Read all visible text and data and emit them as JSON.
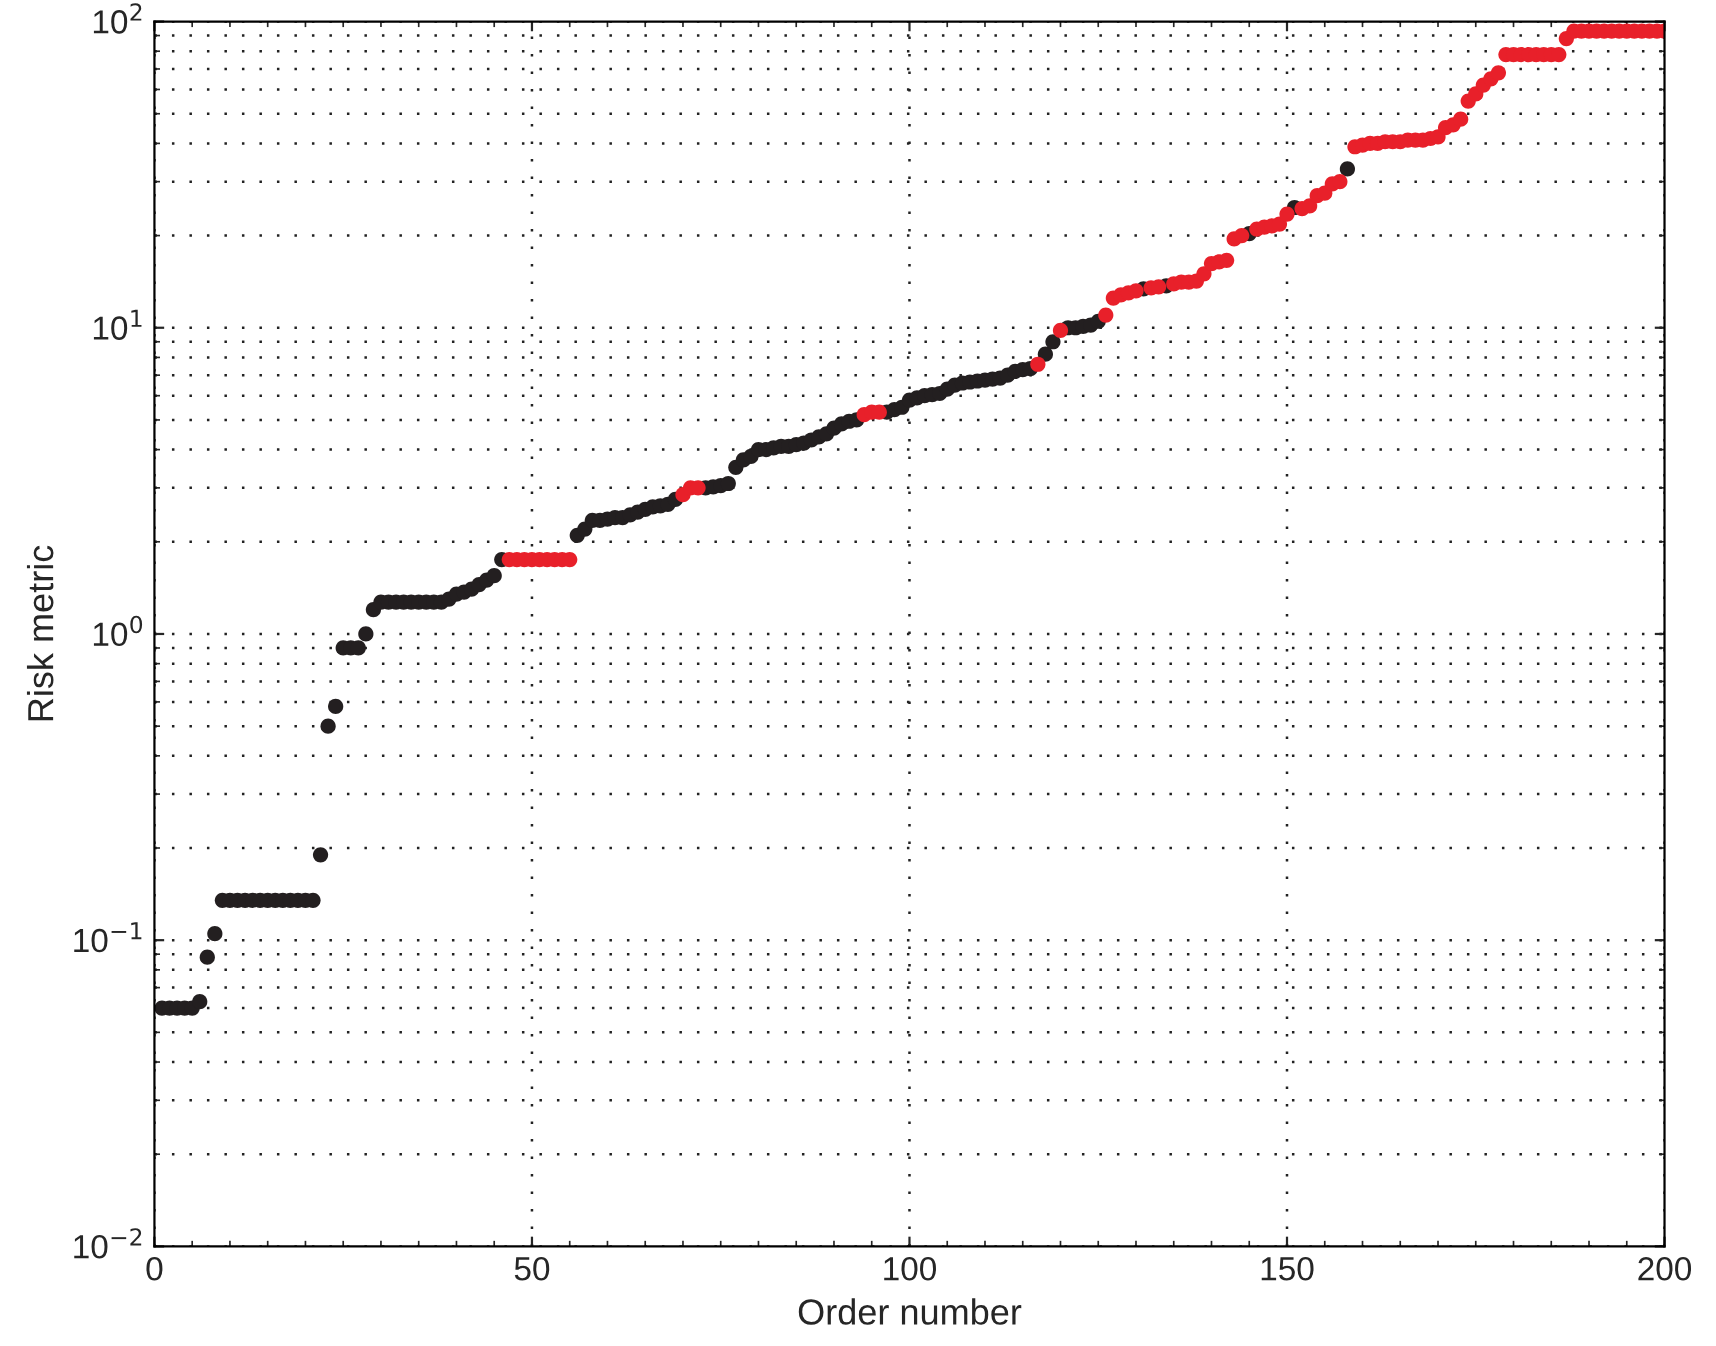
{
  "chart_data": {
    "type": "scatter",
    "xlabel": "Order number",
    "ylabel": "Risk metric",
    "log": "y",
    "grid": true,
    "marker": "circle",
    "legend": false,
    "xlim": [
      0,
      200
    ],
    "xticks": [
      0,
      50,
      100,
      150,
      200
    ],
    "ylim": [
      0.01,
      100
    ],
    "yticks": [
      {
        "value": 0.01,
        "label": "10$^{−2}$"
      },
      {
        "value": 0.1,
        "label": "10$^{−1}$"
      },
      {
        "value": 1,
        "label": "10$^{0}$"
      },
      {
        "value": 10,
        "label": "10$^{1}$"
      },
      {
        "value": 100,
        "label": "10$^{2}$"
      }
    ],
    "series": [
      {
        "color": "#231f20",
        "x": [
          1,
          2,
          3,
          4,
          5,
          6,
          7,
          8,
          9,
          10,
          11,
          12,
          13,
          14,
          15,
          16,
          17,
          18,
          19,
          20,
          21,
          22,
          23,
          24,
          25,
          26,
          27,
          28,
          29,
          30,
          31,
          32,
          33,
          34,
          35,
          36,
          37,
          38,
          39,
          40,
          41,
          42,
          43,
          44,
          45,
          46,
          56,
          57,
          58,
          59,
          60,
          61,
          62,
          63,
          64,
          65,
          66,
          67,
          68,
          69,
          73,
          74,
          75,
          76,
          77,
          78,
          79,
          80,
          81,
          82,
          83,
          84,
          85,
          86,
          87,
          88,
          89,
          90,
          91,
          92,
          93,
          97,
          98,
          99,
          100,
          101,
          102,
          103,
          104,
          105,
          106,
          107,
          108,
          109,
          110,
          111,
          112,
          113,
          114,
          115,
          116,
          118,
          119,
          121,
          122,
          123,
          124,
          125,
          131,
          134,
          145,
          151,
          158
        ],
        "values": [
          0.06,
          0.06,
          0.06,
          0.06,
          0.06,
          0.063,
          0.088,
          0.105,
          0.135,
          0.135,
          0.135,
          0.135,
          0.135,
          0.135,
          0.135,
          0.135,
          0.135,
          0.135,
          0.135,
          0.135,
          0.135,
          0.19,
          0.5,
          0.58,
          0.9,
          0.9,
          0.9,
          1.0,
          1.2,
          1.27,
          1.27,
          1.27,
          1.27,
          1.27,
          1.27,
          1.27,
          1.27,
          1.27,
          1.3,
          1.35,
          1.37,
          1.4,
          1.45,
          1.5,
          1.55,
          1.75,
          2.1,
          2.2,
          2.35,
          2.35,
          2.37,
          2.4,
          2.4,
          2.45,
          2.5,
          2.55,
          2.6,
          2.62,
          2.65,
          2.75,
          3.0,
          3.02,
          3.05,
          3.1,
          3.5,
          3.7,
          3.8,
          4.0,
          4.0,
          4.05,
          4.1,
          4.1,
          4.15,
          4.2,
          4.3,
          4.4,
          4.5,
          4.7,
          4.85,
          4.95,
          5.0,
          5.3,
          5.4,
          5.5,
          5.8,
          5.9,
          6.0,
          6.05,
          6.1,
          6.3,
          6.5,
          6.6,
          6.65,
          6.7,
          6.75,
          6.8,
          6.85,
          7.0,
          7.2,
          7.3,
          7.35,
          8.2,
          9.0,
          10.0,
          10.0,
          10.1,
          10.2,
          10.5,
          13.4,
          13.7,
          20.3,
          24.7,
          33
        ]
      },
      {
        "color": "#e8202a",
        "x": [
          47,
          48,
          49,
          50,
          51,
          52,
          53,
          54,
          55,
          70,
          71,
          72,
          94,
          95,
          96,
          117,
          120,
          126,
          127,
          128,
          129,
          130,
          132,
          133,
          135,
          136,
          137,
          138,
          139,
          140,
          141,
          142,
          143,
          144,
          146,
          147,
          148,
          149,
          150,
          152,
          153,
          154,
          155,
          156,
          157,
          159,
          160,
          161,
          162,
          163,
          164,
          165,
          166,
          167,
          168,
          169,
          170,
          171,
          172,
          173,
          174,
          175,
          176,
          177,
          178,
          179,
          180,
          181,
          182,
          183,
          184,
          185,
          186,
          187,
          188,
          189,
          190,
          191,
          192,
          193,
          194,
          195,
          196,
          197,
          198,
          199,
          200
        ],
        "values": [
          1.75,
          1.75,
          1.75,
          1.75,
          1.75,
          1.75,
          1.75,
          1.75,
          1.75,
          2.85,
          3.0,
          3.0,
          5.2,
          5.3,
          5.3,
          7.6,
          9.8,
          11.0,
          12.5,
          12.8,
          13.0,
          13.2,
          13.5,
          13.6,
          13.9,
          14.1,
          14.1,
          14.2,
          15,
          16.2,
          16.4,
          16.6,
          19.5,
          20,
          21,
          21.3,
          21.5,
          21.8,
          23.5,
          24.5,
          25,
          27,
          27.5,
          29.5,
          30,
          39,
          39.5,
          40,
          40,
          40.5,
          40.5,
          40.5,
          41,
          41,
          41,
          41.5,
          42,
          45,
          46,
          48,
          55,
          58,
          62,
          65,
          68,
          78,
          78,
          78,
          78,
          78,
          78,
          78,
          78,
          88,
          93,
          93,
          93,
          93,
          93,
          93,
          93,
          93,
          93,
          93,
          93,
          93,
          93
        ]
      }
    ]
  }
}
